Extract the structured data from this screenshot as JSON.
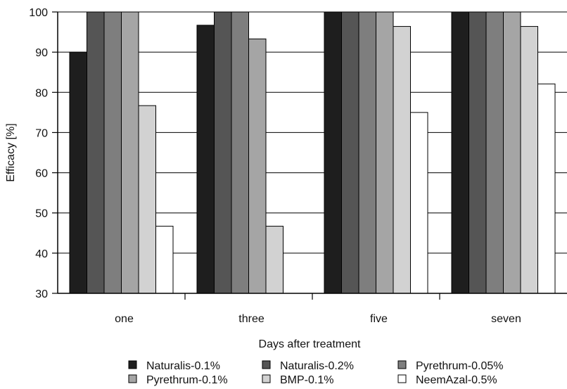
{
  "chart_data": {
    "type": "bar",
    "title": "",
    "xlabel": "Days after treatment",
    "ylabel": "Efficacy [%]",
    "ylim": [
      30,
      100
    ],
    "yticks": [
      30,
      40,
      50,
      60,
      70,
      80,
      90,
      100
    ],
    "grid": true,
    "legend_position": "bottom",
    "categories": [
      "one",
      "three",
      "five",
      "seven"
    ],
    "series": [
      {
        "name": "Naturalis-0.1%",
        "color": "#1e1e1e",
        "values": [
          90,
          96.7,
          100,
          100
        ]
      },
      {
        "name": "Naturalis-0.2%",
        "color": "#555555",
        "values": [
          100,
          100,
          100,
          100
        ]
      },
      {
        "name": "Pyrethrum-0.05%",
        "color": "#7e7e7e",
        "values": [
          100,
          100,
          100,
          100
        ]
      },
      {
        "name": "Pyrethrum-0.1%",
        "color": "#a5a5a5",
        "values": [
          100,
          93.3,
          100,
          100
        ]
      },
      {
        "name": "BMP-0.1%",
        "color": "#d2d2d2",
        "values": [
          76.7,
          46.7,
          96.4,
          96.4
        ]
      },
      {
        "name": "NeemAzal-0.5%",
        "color": "#ffffff",
        "values": [
          46.7,
          30,
          75,
          82.1
        ]
      }
    ]
  }
}
